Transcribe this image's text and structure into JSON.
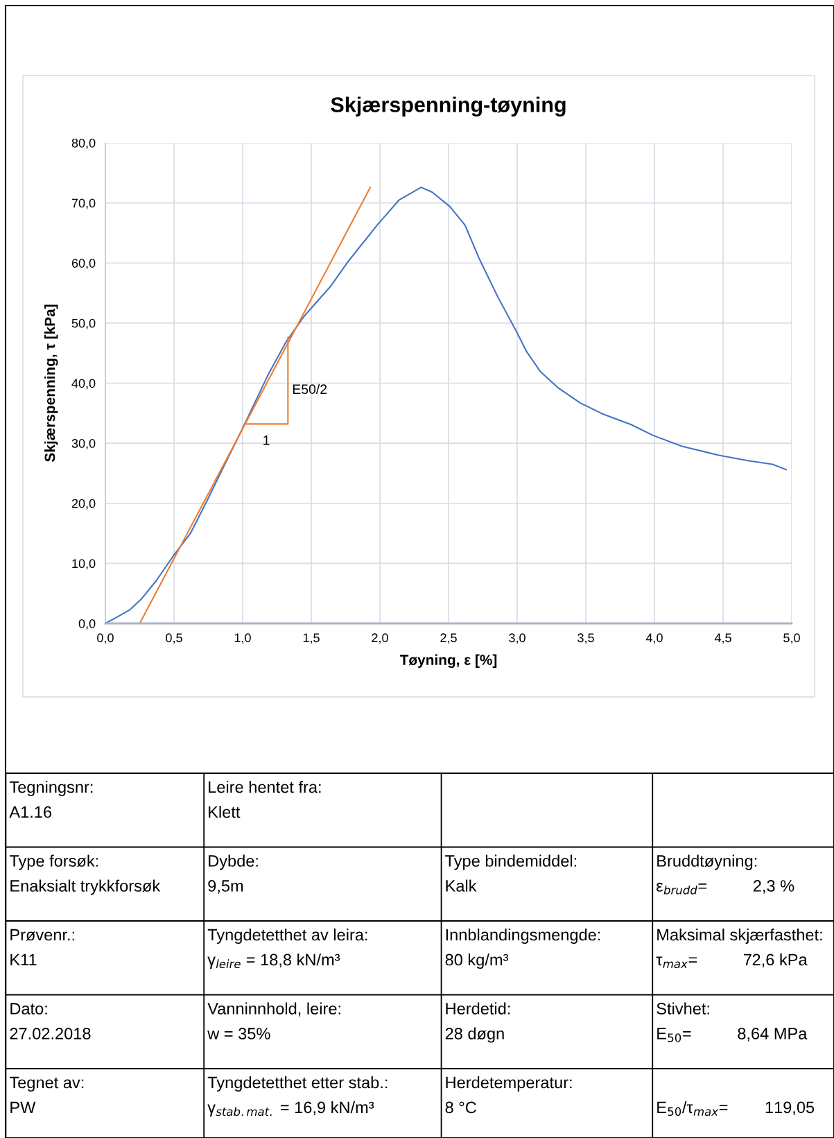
{
  "chart_data": {
    "type": "line",
    "title": "Skjærspenning-tøyning",
    "xlabel": "Tøyning, ε [%]",
    "ylabel": "Skjærspenning, τ [kPa]",
    "xlim": [
      0,
      5
    ],
    "xticks": [
      {
        "value": 0,
        "label": "0,0"
      },
      {
        "value": 0.5,
        "label": "0,5"
      },
      {
        "value": 1,
        "label": "1,0"
      },
      {
        "value": 1.5,
        "label": "1,5"
      },
      {
        "value": 2,
        "label": "2,0"
      },
      {
        "value": 2.5,
        "label": "2,5"
      },
      {
        "value": 3,
        "label": "3,0"
      },
      {
        "value": 3.5,
        "label": "3,5"
      },
      {
        "value": 4,
        "label": "4,0"
      },
      {
        "value": 4.5,
        "label": "4,5"
      },
      {
        "value": 5,
        "label": "5,0"
      }
    ],
    "ylim": [
      0,
      80
    ],
    "yticks": [
      {
        "value": 0,
        "label": "0,0"
      },
      {
        "value": 10,
        "label": "10,0"
      },
      {
        "value": 20,
        "label": "20,0"
      },
      {
        "value": 30,
        "label": "30,0"
      },
      {
        "value": 40,
        "label": "40,0"
      },
      {
        "value": 50,
        "label": "50,0"
      },
      {
        "value": 60,
        "label": "60,0"
      },
      {
        "value": 70,
        "label": "70,0"
      },
      {
        "value": 80,
        "label": "80,0"
      }
    ],
    "grid": true,
    "legend": false,
    "marker": "none",
    "line_style": "solid",
    "series": [
      {
        "color": "#4472c4",
        "x": [
          0,
          0.08,
          0.18,
          0.26,
          0.37,
          0.5,
          0.62,
          0.74,
          0.87,
          1.0,
          1.19,
          1.32,
          1.45,
          1.64,
          1.77,
          1.98,
          2.14,
          2.3,
          2.38,
          2.51,
          2.62,
          2.72,
          2.86,
          2.99,
          3.07,
          3.17,
          3.3,
          3.46,
          3.62,
          3.83,
          3.99,
          4.2,
          4.47,
          4.68,
          4.86,
          4.96
        ],
        "values": [
          0,
          1.0,
          2.3,
          4.0,
          7.1,
          11.4,
          15.0,
          20.4,
          26.5,
          32.5,
          41.6,
          47.0,
          51.2,
          56.1,
          60.3,
          66.3,
          70.5,
          72.6,
          71.8,
          69.4,
          66.3,
          60.9,
          54.3,
          48.8,
          45.2,
          41.9,
          39.2,
          36.7,
          34.9,
          33.1,
          31.3,
          29.5,
          28.0,
          27.1,
          26.5,
          25.6
        ]
      },
      {
        "color": "#ed7d31",
        "x": [
          0.25,
          1.93
        ],
        "values": [
          0,
          72.6
        ]
      },
      {
        "color": "#ed7d31",
        "x": [
          1.02,
          1.33,
          1.33
        ],
        "values": [
          33.2,
          33.2,
          47.6
        ]
      }
    ],
    "annotations": [
      "E50/2",
      "1",
      "Tegningsnr:\nA1.16",
      "Type forsøk:\nEnaksialt trykkforsøk",
      "Prøvenr.:\nK11",
      "Dato:\n27.02.2018",
      "Tegnet av:\nPW",
      "Leire hentet fra:\nKlett",
      "Dybde:\n9,5m",
      "Tyngdetetthet av leira:\nγ$_{leire}$ = 18,8 kN/m³",
      "Vanninnhold, leire:\nw = 35%",
      "Tyngdetetthet etter stab.:\nγ$_{stab.mat.}$ = 16,9 kN/m³",
      "Type bindemiddel:\nKalk",
      "Innblandingsmengde:\n80 kg/m³",
      "Herdetid:\n28 døgn",
      "Herdetemperatur:\n8 °C",
      "Bruddtøyning:\nε$_{brudd}$=          2,3 %",
      "Maksimal skjærfasthet:\nτ$_{max}$=          72,6 kPa",
      "Stivhet:\nE$_{50}$=          8,64 MPa",
      "\nE$_{50}$/τ$_{max}$=        119,05"
    ]
  }
}
